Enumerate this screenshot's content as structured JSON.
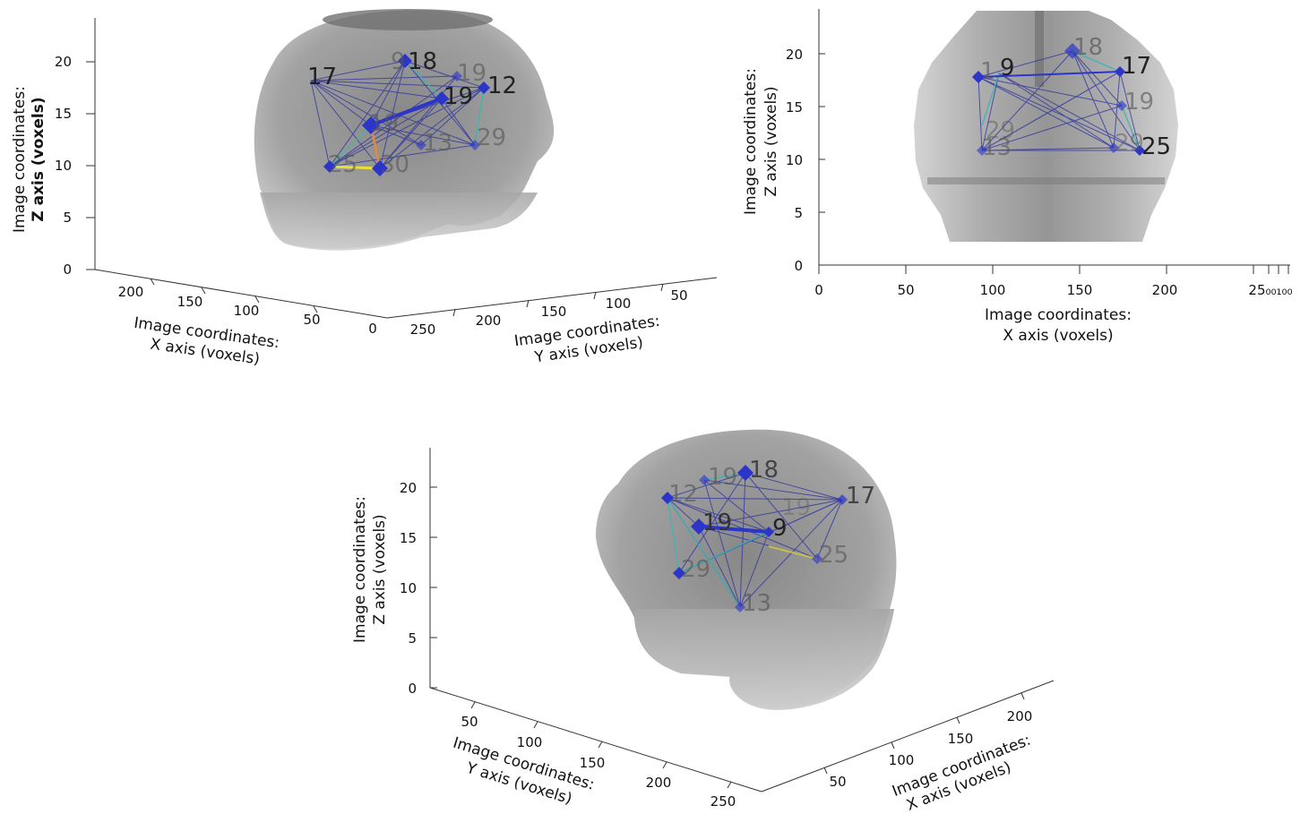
{
  "chart_data": [
    {
      "type": "scatter",
      "view": "3d-oblique",
      "zlabel": [
        "Image coordinates:",
        "Z axis (voxels)"
      ],
      "xlabel": [
        "Image coordinates:",
        "X axis (voxels)"
      ],
      "ylabel": [
        "Image coordinates:",
        "Y axis (voxels)"
      ],
      "z_ticks": [
        "0",
        "5",
        "10",
        "15",
        "20"
      ],
      "x_ticks": [
        "200",
        "150",
        "100",
        "50",
        "0"
      ],
      "y_ticks": [
        "250",
        "200",
        "150",
        "100",
        "50"
      ],
      "node_labels": [
        "17",
        "9",
        "18",
        "19",
        "12",
        "19",
        "13",
        "29",
        "25",
        "30"
      ]
    },
    {
      "type": "scatter",
      "view": "coronal-2d",
      "zlabel": [
        "Image coordinates:",
        "Z axis (voxels)"
      ],
      "xlabel": [
        "Image coordinates:",
        "X axis (voxels)"
      ],
      "z_ticks": [
        "0",
        "5",
        "10",
        "15",
        "20"
      ],
      "x_ticks": [
        "0",
        "50",
        "100",
        "150",
        "200"
      ],
      "x_ticks_overlap": "25₀₀₁₀₀",
      "xlim": [
        0,
        250
      ],
      "ylim": [
        0,
        23
      ],
      "node_labels": [
        "18",
        "9",
        "1",
        "17",
        "19",
        "13",
        "29",
        "25"
      ]
    },
    {
      "type": "scatter",
      "view": "3d-oblique",
      "zlabel": [
        "Image coordinates:",
        "Z axis (voxels)"
      ],
      "ylabel": [
        "Image coordinates:",
        "Y axis (voxels)"
      ],
      "xlabel": [
        "Image coordinates:",
        "X axis (voxels)"
      ],
      "z_ticks": [
        "0",
        "5",
        "10",
        "15",
        "20"
      ],
      "y_ticks": [
        "50",
        "100",
        "150",
        "200",
        "250"
      ],
      "x_ticks": [
        "50",
        "100",
        "150",
        "200"
      ],
      "node_labels": [
        "12",
        "19",
        "18",
        "17",
        "19",
        "9",
        "25",
        "29",
        "13"
      ]
    }
  ],
  "colors": {
    "edge_dark": "#2a2f9e",
    "edge_mid": "#3b55c8",
    "edge_teal": "#3fb5b0",
    "edge_yellow": "#e8e035",
    "edge_orange": "#e8883a",
    "node": "#2b35c9",
    "brain_shade": "#8c8c8c"
  }
}
